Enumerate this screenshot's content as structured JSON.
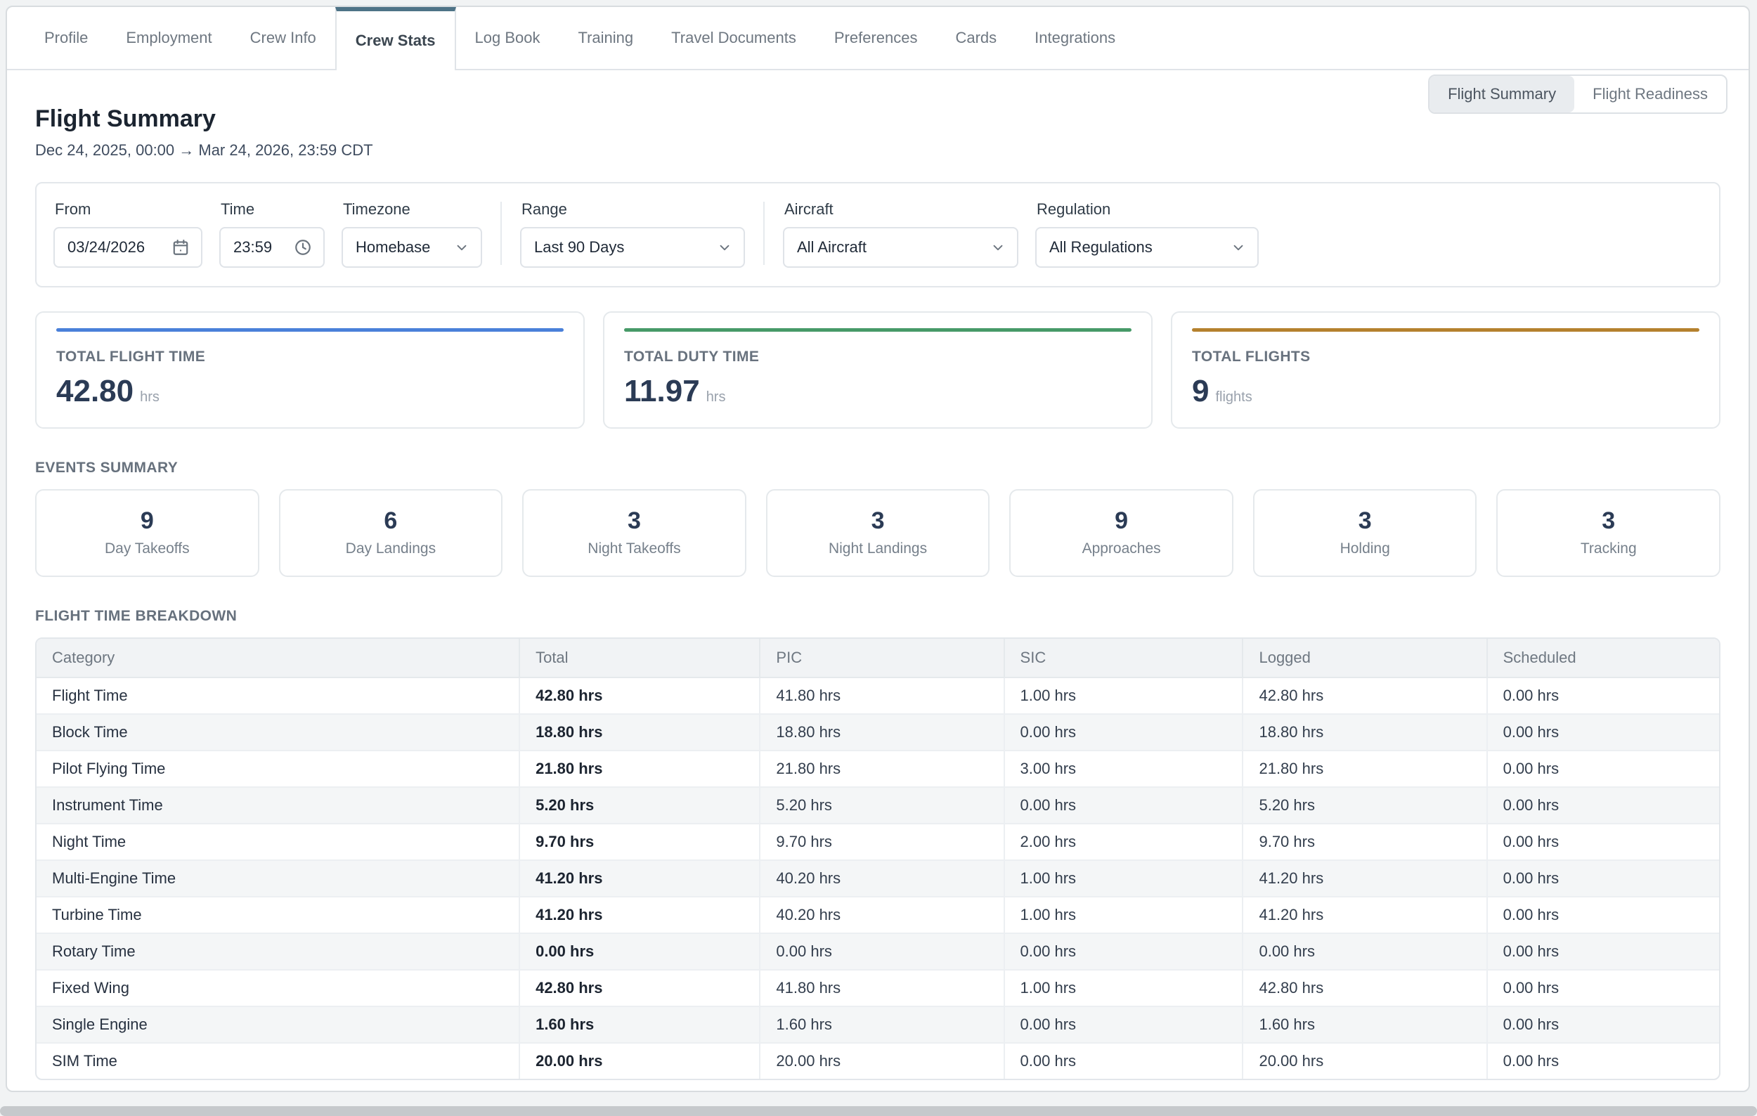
{
  "tabs": {
    "items": [
      {
        "label": "Profile",
        "active": false
      },
      {
        "label": "Employment",
        "active": false
      },
      {
        "label": "Crew Info",
        "active": false
      },
      {
        "label": "Crew Stats",
        "active": true
      },
      {
        "label": "Log Book",
        "active": false
      },
      {
        "label": "Training",
        "active": false
      },
      {
        "label": "Travel Documents",
        "active": false
      },
      {
        "label": "Preferences",
        "active": false
      },
      {
        "label": "Cards",
        "active": false
      },
      {
        "label": "Integrations",
        "active": false
      }
    ]
  },
  "view_toggle": {
    "options": [
      {
        "label": "Flight Summary",
        "active": true
      },
      {
        "label": "Flight Readiness",
        "active": false
      }
    ]
  },
  "header": {
    "title": "Flight Summary",
    "date_range": "Dec 24, 2025, 00:00 → Mar 24, 2026, 23:59 CDT"
  },
  "filters": {
    "from": {
      "label": "From",
      "value": "03/24/2026",
      "icon": "calendar-icon"
    },
    "time": {
      "label": "Time",
      "value": "23:59",
      "icon": "clock-icon"
    },
    "timezone": {
      "label": "Timezone",
      "value": "Homebase",
      "icon": "chevron-down-icon"
    },
    "range": {
      "label": "Range",
      "value": "Last 90 Days",
      "icon": "chevron-down-icon"
    },
    "aircraft": {
      "label": "Aircraft",
      "value": "All Aircraft",
      "icon": "chevron-down-icon"
    },
    "regulation": {
      "label": "Regulation",
      "value": "All Regulations",
      "icon": "chevron-down-icon"
    }
  },
  "stat_cards": [
    {
      "label": "TOTAL FLIGHT TIME",
      "value": "42.80",
      "unit": "hrs",
      "accent_color": "#4a80d9"
    },
    {
      "label": "TOTAL DUTY TIME",
      "value": "11.97",
      "unit": "hrs",
      "accent_color": "#479a68"
    },
    {
      "label": "TOTAL FLIGHTS",
      "value": "9",
      "unit": "flights",
      "accent_color": "#b5812e"
    }
  ],
  "events_summary": {
    "title": "EVENTS SUMMARY",
    "items": [
      {
        "value": "9",
        "label": "Day Takeoffs"
      },
      {
        "value": "6",
        "label": "Day Landings"
      },
      {
        "value": "3",
        "label": "Night Takeoffs"
      },
      {
        "value": "3",
        "label": "Night Landings"
      },
      {
        "value": "9",
        "label": "Approaches"
      },
      {
        "value": "3",
        "label": "Holding"
      },
      {
        "value": "3",
        "label": "Tracking"
      }
    ]
  },
  "breakdown": {
    "title": "FLIGHT TIME BREAKDOWN",
    "columns": [
      "Category",
      "Total",
      "PIC",
      "SIC",
      "Logged",
      "Scheduled"
    ],
    "rows": [
      [
        "Flight Time",
        "42.80 hrs",
        "41.80 hrs",
        "1.00 hrs",
        "42.80 hrs",
        "0.00 hrs"
      ],
      [
        "Block Time",
        "18.80 hrs",
        "18.80 hrs",
        "0.00 hrs",
        "18.80 hrs",
        "0.00 hrs"
      ],
      [
        "Pilot Flying Time",
        "21.80 hrs",
        "21.80 hrs",
        "3.00 hrs",
        "21.80 hrs",
        "0.00 hrs"
      ],
      [
        "Instrument Time",
        "5.20 hrs",
        "5.20 hrs",
        "0.00 hrs",
        "5.20 hrs",
        "0.00 hrs"
      ],
      [
        "Night Time",
        "9.70 hrs",
        "9.70 hrs",
        "2.00 hrs",
        "9.70 hrs",
        "0.00 hrs"
      ],
      [
        "Multi-Engine Time",
        "41.20 hrs",
        "40.20 hrs",
        "1.00 hrs",
        "41.20 hrs",
        "0.00 hrs"
      ],
      [
        "Turbine Time",
        "41.20 hrs",
        "40.20 hrs",
        "1.00 hrs",
        "41.20 hrs",
        "0.00 hrs"
      ],
      [
        "Rotary Time",
        "0.00 hrs",
        "0.00 hrs",
        "0.00 hrs",
        "0.00 hrs",
        "0.00 hrs"
      ],
      [
        "Fixed Wing",
        "42.80 hrs",
        "41.80 hrs",
        "1.00 hrs",
        "42.80 hrs",
        "0.00 hrs"
      ],
      [
        "Single Engine",
        "1.60 hrs",
        "1.60 hrs",
        "0.00 hrs",
        "1.60 hrs",
        "0.00 hrs"
      ],
      [
        "SIM Time",
        "20.00 hrs",
        "20.00 hrs",
        "0.00 hrs",
        "20.00 hrs",
        "0.00 hrs"
      ]
    ]
  }
}
